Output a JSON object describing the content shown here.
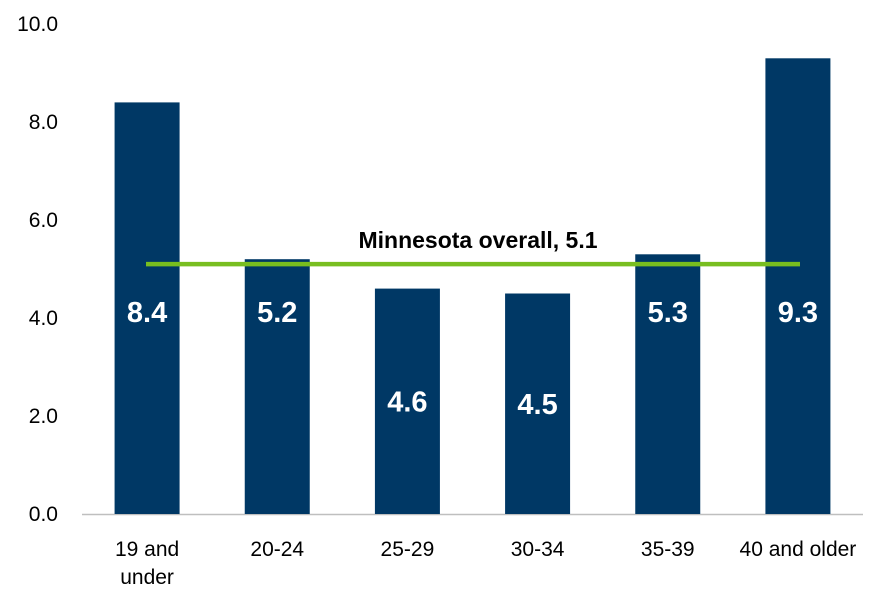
{
  "chart_data": {
    "type": "bar",
    "categories": [
      [
        "19 and",
        "under"
      ],
      [
        "20-24"
      ],
      [
        "25-29"
      ],
      [
        "30-34"
      ],
      [
        "35-39"
      ],
      [
        "40 and older"
      ]
    ],
    "values": [
      8.4,
      5.2,
      4.6,
      4.5,
      5.3,
      9.3
    ],
    "value_labels": [
      "8.4",
      "5.2",
      "4.6",
      "4.5",
      "5.3",
      "9.3"
    ],
    "ylim": [
      0,
      10
    ],
    "yticks": [
      "0.0",
      "2.0",
      "4.0",
      "6.0",
      "8.0",
      "10.0"
    ],
    "reference_line": {
      "value": 5.1,
      "label": "Minnesota overall, 5.1"
    },
    "grid": false,
    "colors": {
      "bar": "#003865",
      "reference_line": "#78BE20",
      "axis": "#bfbfbf"
    }
  }
}
